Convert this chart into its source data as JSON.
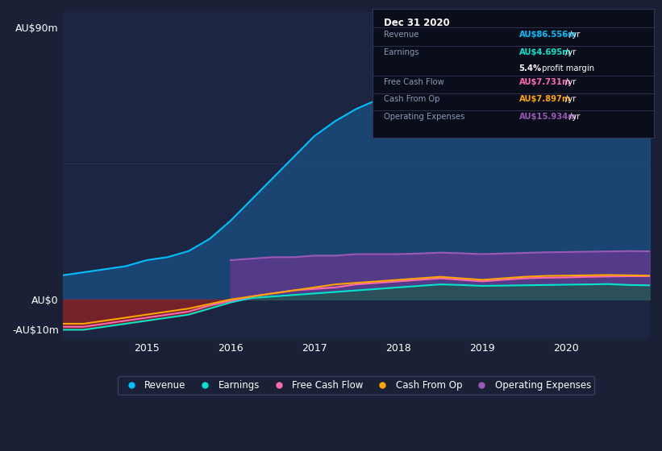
{
  "bg_color": "#1a2035",
  "plot_bg_color": "#1c2541",
  "x_years": [
    2014.0,
    2014.25,
    2014.5,
    2014.75,
    2015.0,
    2015.25,
    2015.5,
    2015.75,
    2016.0,
    2016.25,
    2016.5,
    2016.75,
    2017.0,
    2017.25,
    2017.5,
    2017.75,
    2018.0,
    2018.25,
    2018.5,
    2018.75,
    2019.0,
    2019.25,
    2019.5,
    2019.75,
    2020.0,
    2020.25,
    2020.5,
    2020.75,
    2021.0
  ],
  "revenue": [
    8,
    9,
    10,
    11,
    13,
    14,
    16,
    20,
    26,
    33,
    40,
    47,
    54,
    59,
    63,
    66,
    68,
    71,
    73,
    73,
    72,
    74,
    77,
    80,
    84,
    87,
    86,
    85,
    86.556
  ],
  "earnings": [
    -10,
    -10,
    -9,
    -8,
    -7,
    -6,
    -5,
    -3,
    -1,
    0.5,
    1,
    1.5,
    2,
    2.5,
    3,
    3.5,
    4,
    4.5,
    5,
    4.8,
    4.5,
    4.6,
    4.7,
    4.8,
    4.9,
    5,
    5.1,
    4.8,
    4.695
  ],
  "free_cash_flow": [
    -9,
    -9,
    -8,
    -7,
    -6,
    -5,
    -4,
    -2,
    -0.5,
    1,
    2,
    3,
    3.5,
    4,
    5,
    5.5,
    6,
    6.5,
    7,
    6.5,
    6,
    6.5,
    7,
    7.2,
    7.3,
    7.5,
    7.6,
    7.7,
    7.731
  ],
  "cash_from_op": [
    -8,
    -8,
    -7,
    -6,
    -5,
    -4,
    -3,
    -1.5,
    0,
    1,
    2,
    3,
    4,
    5,
    5.5,
    6,
    6.5,
    7,
    7.5,
    7,
    6.5,
    7,
    7.5,
    7.8,
    7.9,
    8,
    8.1,
    8.0,
    7.897
  ],
  "operating_expenses": [
    0,
    0,
    0,
    0,
    0,
    0,
    0,
    0,
    13,
    13.5,
    14,
    14,
    14.5,
    14.5,
    15,
    15,
    15,
    15.2,
    15.5,
    15.3,
    15.0,
    15.2,
    15.4,
    15.6,
    15.7,
    15.8,
    15.9,
    16.0,
    15.934
  ],
  "revenue_color": "#00bfff",
  "earnings_color": "#00e5cc",
  "free_cash_flow_color": "#ff69b4",
  "cash_from_op_color": "#ffa500",
  "operating_expenses_color": "#9b59b6",
  "revenue_fill": "#1a4a7a",
  "ylim_min": -13,
  "ylim_max": 95,
  "ytick_labels": [
    "AU$90m",
    "AU$0",
    "-AU$10m"
  ],
  "ytick_values": [
    90,
    0,
    -10
  ],
  "xtick_labels": [
    "2015",
    "2016",
    "2017",
    "2018",
    "2019",
    "2020"
  ],
  "xtick_values": [
    2015,
    2016,
    2017,
    2018,
    2019,
    2020
  ],
  "legend_items": [
    "Revenue",
    "Earnings",
    "Free Cash Flow",
    "Cash From Op",
    "Operating Expenses"
  ],
  "legend_colors": [
    "#00bfff",
    "#00e5cc",
    "#ff69b4",
    "#ffa500",
    "#9b59b6"
  ],
  "table_title": "Dec 31 2020",
  "table_revenue_label": "Revenue",
  "table_revenue_val": "AU$86.556m",
  "table_revenue_unit": "/yr",
  "table_earnings_label": "Earnings",
  "table_earnings_val": "AU$4.695m",
  "table_earnings_unit": "/yr",
  "table_margin_pct": "5.4%",
  "table_margin_text": " profit margin",
  "table_fcf_label": "Free Cash Flow",
  "table_fcf_val": "AU$7.731m",
  "table_fcf_unit": "/yr",
  "table_cashop_label": "Cash From Op",
  "table_cashop_val": "AU$7.897m",
  "table_cashop_unit": "/yr",
  "table_opex_label": "Operating Expenses",
  "table_opex_val": "AU$15.934m",
  "table_opex_unit": "/yr"
}
